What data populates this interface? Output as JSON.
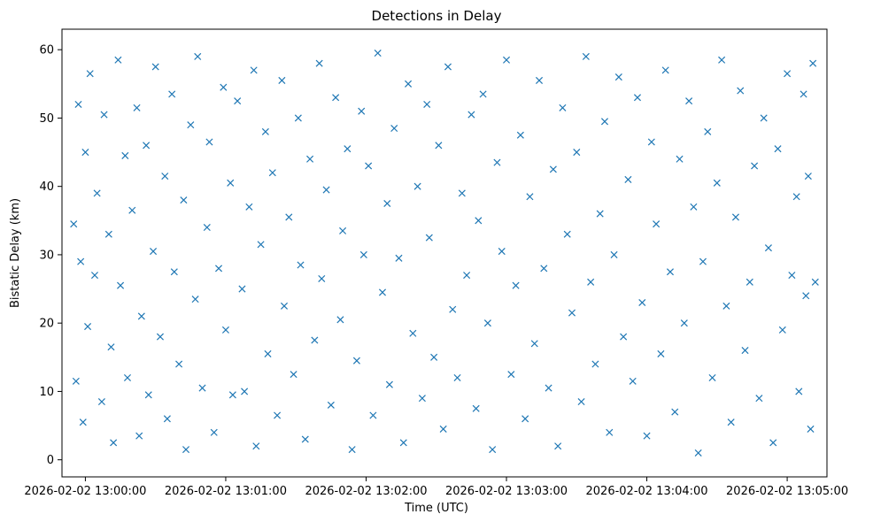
{
  "chart_data": {
    "type": "scatter",
    "title": "Detections in Delay",
    "xlabel": "Time (UTC)",
    "ylabel": "Bistatic Delay (km)",
    "marker": "x",
    "color": "#1f77b4",
    "grid": false,
    "legend": "none",
    "xlim": [
      "2026-02-02 12:59:50",
      "2026-02-02 13:05:17"
    ],
    "ylim": [
      -2.5,
      63
    ],
    "x_ticks": [
      {
        "value": "2026-02-02 13:00:00",
        "label": "2026-02-02 13:00:00"
      },
      {
        "value": "2026-02-02 13:01:00",
        "label": "2026-02-02 13:01:00"
      },
      {
        "value": "2026-02-02 13:02:00",
        "label": "2026-02-02 13:02:00"
      },
      {
        "value": "2026-02-02 13:03:00",
        "label": "2026-02-02 13:03:00"
      },
      {
        "value": "2026-02-02 13:04:00",
        "label": "2026-02-02 13:04:00"
      },
      {
        "value": "2026-02-02 13:05:00",
        "label": "2026-02-02 13:05:00"
      }
    ],
    "y_ticks": [
      {
        "value": 0,
        "label": "0"
      },
      {
        "value": 10,
        "label": "10"
      },
      {
        "value": 20,
        "label": "20"
      },
      {
        "value": 30,
        "label": "30"
      },
      {
        "value": 40,
        "label": "40"
      },
      {
        "value": 50,
        "label": "50"
      },
      {
        "value": 60,
        "label": "60"
      }
    ],
    "series": [
      {
        "points": [
          [
            "2026-02-02 12:59:55",
            34.5
          ],
          [
            "2026-02-02 12:59:56",
            11.5
          ],
          [
            "2026-02-02 12:59:57",
            52.0
          ],
          [
            "2026-02-02 12:59:58",
            29.0
          ],
          [
            "2026-02-02 12:59:59",
            5.5
          ],
          [
            "2026-02-02 13:00:00",
            45.0
          ],
          [
            "2026-02-02 13:00:01",
            19.5
          ],
          [
            "2026-02-02 13:00:02",
            56.5
          ],
          [
            "2026-02-02 13:00:04",
            27.0
          ],
          [
            "2026-02-02 13:00:05",
            39.0
          ],
          [
            "2026-02-02 13:00:07",
            8.5
          ],
          [
            "2026-02-02 13:00:08",
            50.5
          ],
          [
            "2026-02-02 13:00:10",
            33.0
          ],
          [
            "2026-02-02 13:00:11",
            16.5
          ],
          [
            "2026-02-02 13:00:12",
            2.5
          ],
          [
            "2026-02-02 13:00:14",
            58.5
          ],
          [
            "2026-02-02 13:00:15",
            25.5
          ],
          [
            "2026-02-02 13:00:17",
            44.5
          ],
          [
            "2026-02-02 13:00:18",
            12.0
          ],
          [
            "2026-02-02 13:00:20",
            36.5
          ],
          [
            "2026-02-02 13:00:22",
            51.5
          ],
          [
            "2026-02-02 13:00:23",
            3.5
          ],
          [
            "2026-02-02 13:00:24",
            21.0
          ],
          [
            "2026-02-02 13:00:26",
            46.0
          ],
          [
            "2026-02-02 13:00:27",
            9.5
          ],
          [
            "2026-02-02 13:00:29",
            30.5
          ],
          [
            "2026-02-02 13:00:30",
            57.5
          ],
          [
            "2026-02-02 13:00:32",
            18.0
          ],
          [
            "2026-02-02 13:00:34",
            41.5
          ],
          [
            "2026-02-02 13:00:35",
            6.0
          ],
          [
            "2026-02-02 13:00:37",
            53.5
          ],
          [
            "2026-02-02 13:00:38",
            27.5
          ],
          [
            "2026-02-02 13:00:40",
            14.0
          ],
          [
            "2026-02-02 13:00:42",
            38.0
          ],
          [
            "2026-02-02 13:00:43",
            1.5
          ],
          [
            "2026-02-02 13:00:45",
            49.0
          ],
          [
            "2026-02-02 13:00:47",
            23.5
          ],
          [
            "2026-02-02 13:00:48",
            59.0
          ],
          [
            "2026-02-02 13:00:50",
            10.5
          ],
          [
            "2026-02-02 13:00:52",
            34.0
          ],
          [
            "2026-02-02 13:00:53",
            46.5
          ],
          [
            "2026-02-02 13:00:55",
            4.0
          ],
          [
            "2026-02-02 13:00:57",
            28.0
          ],
          [
            "2026-02-02 13:00:59",
            54.5
          ],
          [
            "2026-02-02 13:01:00",
            19.0
          ],
          [
            "2026-02-02 13:01:02",
            40.5
          ],
          [
            "2026-02-02 13:01:03",
            9.5
          ],
          [
            "2026-02-02 13:01:05",
            52.5
          ],
          [
            "2026-02-02 13:01:07",
            25.0
          ],
          [
            "2026-02-02 13:01:08",
            10.0
          ],
          [
            "2026-02-02 13:01:10",
            37.0
          ],
          [
            "2026-02-02 13:01:12",
            57.0
          ],
          [
            "2026-02-02 13:01:13",
            2.0
          ],
          [
            "2026-02-02 13:01:15",
            31.5
          ],
          [
            "2026-02-02 13:01:17",
            48.0
          ],
          [
            "2026-02-02 13:01:18",
            15.5
          ],
          [
            "2026-02-02 13:01:20",
            42.0
          ],
          [
            "2026-02-02 13:01:22",
            6.5
          ],
          [
            "2026-02-02 13:01:24",
            55.5
          ],
          [
            "2026-02-02 13:01:25",
            22.5
          ],
          [
            "2026-02-02 13:01:27",
            35.5
          ],
          [
            "2026-02-02 13:01:29",
            12.5
          ],
          [
            "2026-02-02 13:01:31",
            50.0
          ],
          [
            "2026-02-02 13:01:32",
            28.5
          ],
          [
            "2026-02-02 13:01:34",
            3.0
          ],
          [
            "2026-02-02 13:01:36",
            44.0
          ],
          [
            "2026-02-02 13:01:38",
            17.5
          ],
          [
            "2026-02-02 13:01:40",
            58.0
          ],
          [
            "2026-02-02 13:01:41",
            26.5
          ],
          [
            "2026-02-02 13:01:43",
            39.5
          ],
          [
            "2026-02-02 13:01:45",
            8.0
          ],
          [
            "2026-02-02 13:01:47",
            53.0
          ],
          [
            "2026-02-02 13:01:49",
            20.5
          ],
          [
            "2026-02-02 13:01:50",
            33.5
          ],
          [
            "2026-02-02 13:01:52",
            45.5
          ],
          [
            "2026-02-02 13:01:54",
            1.5
          ],
          [
            "2026-02-02 13:01:56",
            14.5
          ],
          [
            "2026-02-02 13:01:58",
            51.0
          ],
          [
            "2026-02-02 13:01:59",
            30.0
          ],
          [
            "2026-02-02 13:02:01",
            43.0
          ],
          [
            "2026-02-02 13:02:03",
            6.5
          ],
          [
            "2026-02-02 13:02:05",
            59.5
          ],
          [
            "2026-02-02 13:02:07",
            24.5
          ],
          [
            "2026-02-02 13:02:09",
            37.5
          ],
          [
            "2026-02-02 13:02:10",
            11.0
          ],
          [
            "2026-02-02 13:02:12",
            48.5
          ],
          [
            "2026-02-02 13:02:14",
            29.5
          ],
          [
            "2026-02-02 13:02:16",
            2.5
          ],
          [
            "2026-02-02 13:02:18",
            55.0
          ],
          [
            "2026-02-02 13:02:20",
            18.5
          ],
          [
            "2026-02-02 13:02:22",
            40.0
          ],
          [
            "2026-02-02 13:02:24",
            9.0
          ],
          [
            "2026-02-02 13:02:26",
            52.0
          ],
          [
            "2026-02-02 13:02:27",
            32.5
          ],
          [
            "2026-02-02 13:02:29",
            15.0
          ],
          [
            "2026-02-02 13:02:31",
            46.0
          ],
          [
            "2026-02-02 13:02:33",
            4.5
          ],
          [
            "2026-02-02 13:02:35",
            57.5
          ],
          [
            "2026-02-02 13:02:37",
            22.0
          ],
          [
            "2026-02-02 13:02:39",
            12.0
          ],
          [
            "2026-02-02 13:02:41",
            39.0
          ],
          [
            "2026-02-02 13:02:43",
            27.0
          ],
          [
            "2026-02-02 13:02:45",
            50.5
          ],
          [
            "2026-02-02 13:02:47",
            7.5
          ],
          [
            "2026-02-02 13:02:48",
            35.0
          ],
          [
            "2026-02-02 13:02:50",
            53.5
          ],
          [
            "2026-02-02 13:02:52",
            20.0
          ],
          [
            "2026-02-02 13:02:54",
            1.5
          ],
          [
            "2026-02-02 13:02:56",
            43.5
          ],
          [
            "2026-02-02 13:02:58",
            30.5
          ],
          [
            "2026-02-02 13:03:00",
            58.5
          ],
          [
            "2026-02-02 13:03:02",
            12.5
          ],
          [
            "2026-02-02 13:03:04",
            25.5
          ],
          [
            "2026-02-02 13:03:06",
            47.5
          ],
          [
            "2026-02-02 13:03:08",
            6.0
          ],
          [
            "2026-02-02 13:03:10",
            38.5
          ],
          [
            "2026-02-02 13:03:12",
            17.0
          ],
          [
            "2026-02-02 13:03:14",
            55.5
          ],
          [
            "2026-02-02 13:03:16",
            28.0
          ],
          [
            "2026-02-02 13:03:18",
            10.5
          ],
          [
            "2026-02-02 13:03:20",
            42.5
          ],
          [
            "2026-02-02 13:03:22",
            2.0
          ],
          [
            "2026-02-02 13:03:24",
            51.5
          ],
          [
            "2026-02-02 13:03:26",
            33.0
          ],
          [
            "2026-02-02 13:03:28",
            21.5
          ],
          [
            "2026-02-02 13:03:30",
            45.0
          ],
          [
            "2026-02-02 13:03:32",
            8.5
          ],
          [
            "2026-02-02 13:03:34",
            59.0
          ],
          [
            "2026-02-02 13:03:36",
            26.0
          ],
          [
            "2026-02-02 13:03:38",
            14.0
          ],
          [
            "2026-02-02 13:03:40",
            36.0
          ],
          [
            "2026-02-02 13:03:42",
            49.5
          ],
          [
            "2026-02-02 13:03:44",
            4.0
          ],
          [
            "2026-02-02 13:03:46",
            30.0
          ],
          [
            "2026-02-02 13:03:48",
            56.0
          ],
          [
            "2026-02-02 13:03:50",
            18.0
          ],
          [
            "2026-02-02 13:03:52",
            41.0
          ],
          [
            "2026-02-02 13:03:54",
            11.5
          ],
          [
            "2026-02-02 13:03:56",
            53.0
          ],
          [
            "2026-02-02 13:03:58",
            23.0
          ],
          [
            "2026-02-02 13:04:00",
            3.5
          ],
          [
            "2026-02-02 13:04:02",
            46.5
          ],
          [
            "2026-02-02 13:04:04",
            34.5
          ],
          [
            "2026-02-02 13:04:06",
            15.5
          ],
          [
            "2026-02-02 13:04:08",
            57.0
          ],
          [
            "2026-02-02 13:04:10",
            27.5
          ],
          [
            "2026-02-02 13:04:12",
            7.0
          ],
          [
            "2026-02-02 13:04:14",
            44.0
          ],
          [
            "2026-02-02 13:04:16",
            20.0
          ],
          [
            "2026-02-02 13:04:18",
            52.5
          ],
          [
            "2026-02-02 13:04:20",
            37.0
          ],
          [
            "2026-02-02 13:04:22",
            1.0
          ],
          [
            "2026-02-02 13:04:24",
            29.0
          ],
          [
            "2026-02-02 13:04:26",
            48.0
          ],
          [
            "2026-02-02 13:04:28",
            12.0
          ],
          [
            "2026-02-02 13:04:30",
            40.5
          ],
          [
            "2026-02-02 13:04:32",
            58.5
          ],
          [
            "2026-02-02 13:04:34",
            22.5
          ],
          [
            "2026-02-02 13:04:36",
            5.5
          ],
          [
            "2026-02-02 13:04:38",
            35.5
          ],
          [
            "2026-02-02 13:04:40",
            54.0
          ],
          [
            "2026-02-02 13:04:42",
            16.0
          ],
          [
            "2026-02-02 13:04:44",
            26.0
          ],
          [
            "2026-02-02 13:04:46",
            43.0
          ],
          [
            "2026-02-02 13:04:48",
            9.0
          ],
          [
            "2026-02-02 13:04:50",
            50.0
          ],
          [
            "2026-02-02 13:04:52",
            31.0
          ],
          [
            "2026-02-02 13:04:54",
            2.5
          ],
          [
            "2026-02-02 13:04:56",
            45.5
          ],
          [
            "2026-02-02 13:04:58",
            19.0
          ],
          [
            "2026-02-02 13:05:00",
            56.5
          ],
          [
            "2026-02-02 13:05:02",
            27.0
          ],
          [
            "2026-02-02 13:05:04",
            38.5
          ],
          [
            "2026-02-02 13:05:05",
            10.0
          ],
          [
            "2026-02-02 13:05:07",
            53.5
          ],
          [
            "2026-02-02 13:05:08",
            24.0
          ],
          [
            "2026-02-02 13:05:09",
            41.5
          ],
          [
            "2026-02-02 13:05:10",
            4.5
          ],
          [
            "2026-02-02 13:05:11",
            58.0
          ],
          [
            "2026-02-02 13:05:12",
            26.0
          ]
        ]
      }
    ]
  }
}
